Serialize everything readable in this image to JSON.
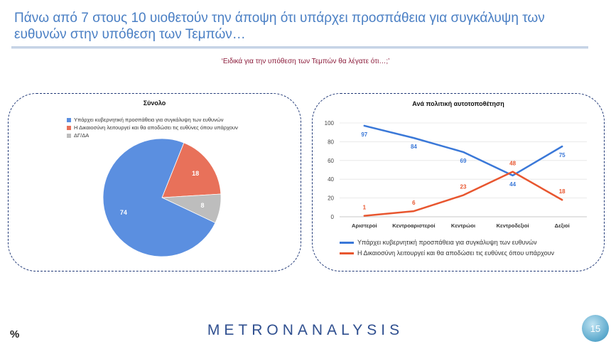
{
  "header": {
    "title": "Πάνω από 7 στους 10 υιοθετούν την άποψη ότι υπάρχει προσπάθεια για συγκάλυψη των ευθυνών στην υπόθεση των Τεμπών…",
    "question": "‘Ειδικά για την υπόθεση  των Τεμπών θα λέγατε ότι…;’"
  },
  "footer": {
    "brand_left": "METRON",
    "brand_right": "ANALYSIS",
    "percent_symbol": "%",
    "page_number": "15"
  },
  "colors": {
    "blue": "#5b8fe0",
    "orange": "#e8715a",
    "gray": "#bdbdbd",
    "line_blue": "#3a78d8",
    "line_orange": "#e8562f"
  },
  "chart_data": [
    {
      "type": "pie",
      "title": "Σύνολο",
      "legend_position": "top",
      "categories": [
        "Υπάρχει κυβερνητική προσπάθεια για συγκάλυψη των ευθυνών",
        "Η Δικαιοσύνη λειτουργεί και θα αποδώσει τις ευθύνες όπου υπάρχουν",
        "ΔΓ/ΔΑ"
      ],
      "values": [
        74,
        18,
        8
      ],
      "colors": [
        "#5b8fe0",
        "#e8715a",
        "#bdbdbd"
      ]
    },
    {
      "type": "line",
      "title": "Ανά πολιτική αυτοτοποθέτηση",
      "categories": [
        "Αριστεροί",
        "Κεντροαριστεροί",
        "Κεντρώοι",
        "Κεντροδεξιοί",
        "Δεξιοί"
      ],
      "ylim": [
        0,
        100
      ],
      "yticks": [
        0,
        20,
        40,
        60,
        80,
        100
      ],
      "grid": true,
      "legend_position": "bottom",
      "series": [
        {
          "name": "Υπάρχει κυβερνητική προσπάθεια για συγκάλυψη των ευθυνών",
          "values": [
            97,
            84,
            69,
            44,
            75
          ],
          "color": "#3a78d8"
        },
        {
          "name": "Η Δικαιοσύνη λειτουργεί και θα αποδώσει τις ευθύνες όπου υπάρχουν",
          "values": [
            1,
            6,
            23,
            48,
            18
          ],
          "color": "#e8562f"
        }
      ]
    }
  ]
}
